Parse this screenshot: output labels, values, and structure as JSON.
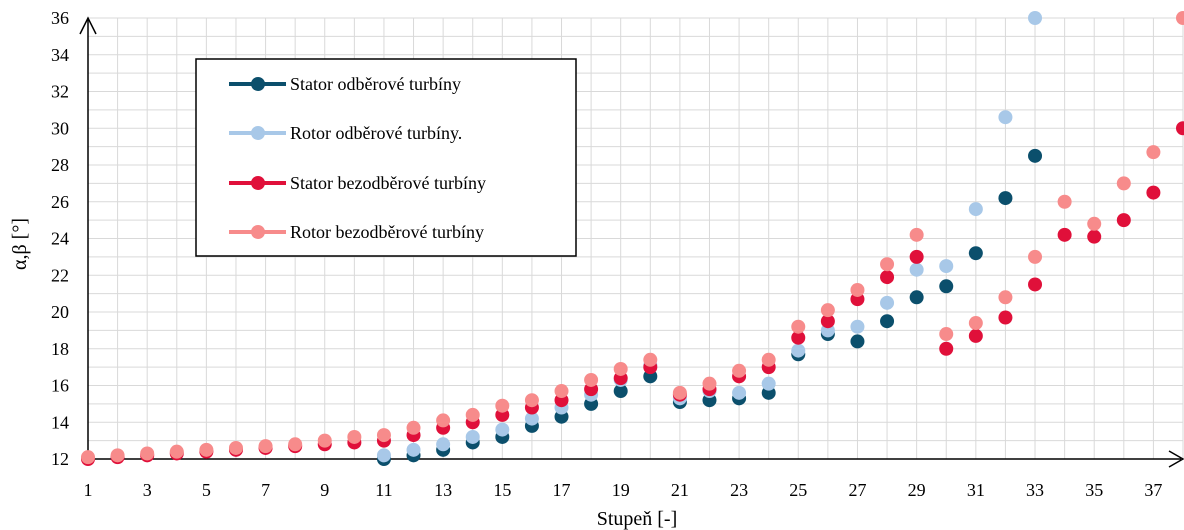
{
  "chart_data": {
    "type": "scatter",
    "xlabel": "Stupeň [-]",
    "ylabel": "α,β [°]",
    "xlim": [
      1,
      38
    ],
    "ylim": [
      12,
      36
    ],
    "x_ticks": [
      1,
      3,
      5,
      7,
      9,
      11,
      13,
      15,
      17,
      19,
      21,
      23,
      25,
      27,
      29,
      31,
      33,
      35,
      37
    ],
    "y_ticks": [
      12,
      14,
      16,
      18,
      20,
      22,
      24,
      26,
      28,
      30,
      32,
      34,
      36
    ],
    "grid": true,
    "legend_position": "top-left",
    "series": [
      {
        "name": "Stator odběrové turbíny",
        "color": "#0b4f6c",
        "points": [
          [
            11,
            12.0
          ],
          [
            12,
            12.2
          ],
          [
            13,
            12.5
          ],
          [
            14,
            12.9
          ],
          [
            15,
            13.2
          ],
          [
            16,
            13.8
          ],
          [
            17,
            14.3
          ],
          [
            18,
            15.0
          ],
          [
            19,
            15.7
          ],
          [
            20,
            16.5
          ],
          [
            21,
            15.1
          ],
          [
            22,
            15.2
          ],
          [
            23,
            15.3
          ],
          [
            24,
            15.6
          ],
          [
            25,
            17.7
          ],
          [
            26,
            18.8
          ],
          [
            27,
            18.4
          ],
          [
            28,
            19.5
          ],
          [
            29,
            20.8
          ],
          [
            30,
            21.4
          ],
          [
            31,
            23.2
          ],
          [
            32,
            26.2
          ],
          [
            33,
            28.5
          ]
        ]
      },
      {
        "name": "Rotor odběrové turbíny.",
        "color": "#a8c8e8",
        "points": [
          [
            11,
            12.2
          ],
          [
            12,
            12.5
          ],
          [
            13,
            12.8
          ],
          [
            14,
            13.2
          ],
          [
            15,
            13.6
          ],
          [
            16,
            14.2
          ],
          [
            17,
            14.8
          ],
          [
            18,
            15.5
          ],
          [
            19,
            16.3
          ],
          [
            20,
            17.1
          ],
          [
            21,
            15.3
          ],
          [
            22,
            15.7
          ],
          [
            23,
            15.6
          ],
          [
            24,
            16.1
          ],
          [
            25,
            17.9
          ],
          [
            26,
            19.0
          ],
          [
            27,
            19.2
          ],
          [
            28,
            20.5
          ],
          [
            29,
            22.3
          ],
          [
            30,
            22.5
          ],
          [
            31,
            25.6
          ],
          [
            32,
            30.6
          ],
          [
            33,
            36.0
          ]
        ]
      },
      {
        "name": "Stator bezodběrové turbíny",
        "color": "#e0103a",
        "points": [
          [
            1,
            12.0
          ],
          [
            2,
            12.1
          ],
          [
            3,
            12.2
          ],
          [
            4,
            12.3
          ],
          [
            5,
            12.4
          ],
          [
            6,
            12.5
          ],
          [
            7,
            12.6
          ],
          [
            8,
            12.7
          ],
          [
            9,
            12.8
          ],
          [
            10,
            12.9
          ],
          [
            11,
            13.0
          ],
          [
            12,
            13.3
          ],
          [
            13,
            13.7
          ],
          [
            14,
            14.0
          ],
          [
            15,
            14.4
          ],
          [
            16,
            14.8
          ],
          [
            17,
            15.2
          ],
          [
            18,
            15.8
          ],
          [
            19,
            16.4
          ],
          [
            20,
            17.0
          ],
          [
            21,
            15.5
          ],
          [
            22,
            15.8
          ],
          [
            23,
            16.5
          ],
          [
            24,
            17.0
          ],
          [
            25,
            18.6
          ],
          [
            26,
            19.5
          ],
          [
            27,
            20.7
          ],
          [
            28,
            21.9
          ],
          [
            29,
            23.0
          ],
          [
            30,
            18.0
          ],
          [
            31,
            18.7
          ],
          [
            32,
            19.7
          ],
          [
            33,
            21.5
          ],
          [
            34,
            24.2
          ],
          [
            35,
            24.1
          ],
          [
            36,
            25.0
          ],
          [
            37,
            26.5
          ],
          [
            38,
            30.0
          ]
        ]
      },
      {
        "name": "Rotor bezodběrové turbíny",
        "color": "#f78b8b",
        "points": [
          [
            1,
            12.1
          ],
          [
            2,
            12.2
          ],
          [
            3,
            12.3
          ],
          [
            4,
            12.4
          ],
          [
            5,
            12.5
          ],
          [
            6,
            12.6
          ],
          [
            7,
            12.7
          ],
          [
            8,
            12.8
          ],
          [
            9,
            13.0
          ],
          [
            10,
            13.2
          ],
          [
            11,
            13.3
          ],
          [
            12,
            13.7
          ],
          [
            13,
            14.1
          ],
          [
            14,
            14.4
          ],
          [
            15,
            14.9
          ],
          [
            16,
            15.2
          ],
          [
            17,
            15.7
          ],
          [
            18,
            16.3
          ],
          [
            19,
            16.9
          ],
          [
            20,
            17.4
          ],
          [
            21,
            15.6
          ],
          [
            22,
            16.1
          ],
          [
            23,
            16.8
          ],
          [
            24,
            17.4
          ],
          [
            25,
            19.2
          ],
          [
            26,
            20.1
          ],
          [
            27,
            21.2
          ],
          [
            28,
            22.6
          ],
          [
            29,
            24.2
          ],
          [
            30,
            18.8
          ],
          [
            31,
            19.4
          ],
          [
            32,
            20.8
          ],
          [
            33,
            23.0
          ],
          [
            34,
            26.0
          ],
          [
            35,
            24.8
          ],
          [
            36,
            27.0
          ],
          [
            37,
            28.7
          ],
          [
            38,
            36.0
          ]
        ]
      }
    ]
  }
}
